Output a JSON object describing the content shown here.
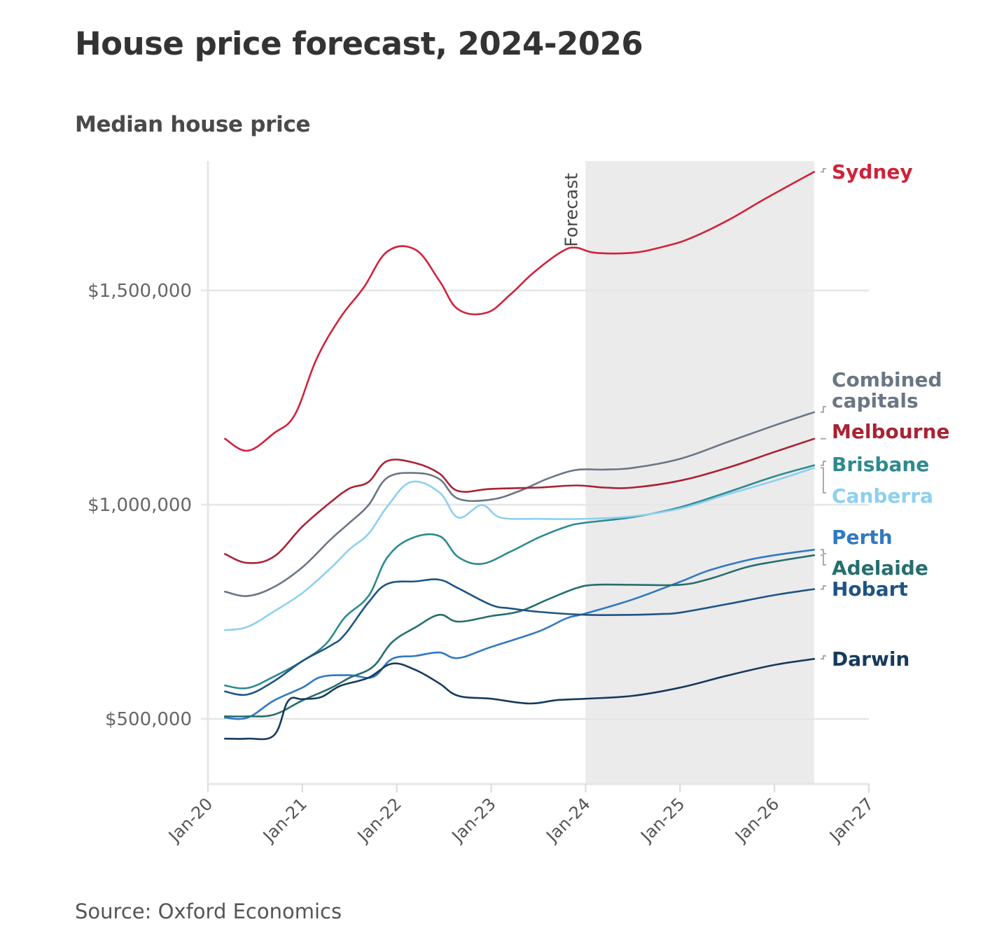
{
  "title": "House price forecast, 2024-2026",
  "subtitle": "Median house price",
  "source": "Source: Oxford Economics",
  "chart_data": {
    "type": "line",
    "title": "House price forecast, 2024-2026",
    "subtitle": "Median house price",
    "xlabel": "",
    "ylabel": "",
    "x_unit": "year (decimal)",
    "y_unit": "AUD",
    "xlim": [
      2020,
      2027
    ],
    "ylim": [
      350000,
      1800000
    ],
    "x_ticks": [
      {
        "value": 2020,
        "label": "Jan-20"
      },
      {
        "value": 2021,
        "label": "Jan-21"
      },
      {
        "value": 2022,
        "label": "Jan-22"
      },
      {
        "value": 2023,
        "label": "Jan-23"
      },
      {
        "value": 2024,
        "label": "Jan-24"
      },
      {
        "value": 2025,
        "label": "Jan-25"
      },
      {
        "value": 2026,
        "label": "Jan-26"
      },
      {
        "value": 2027,
        "label": "Jan-27"
      }
    ],
    "y_ticks": [
      {
        "value": 500000,
        "label": "$500,000"
      },
      {
        "value": 1000000,
        "label": "$1,000,000"
      },
      {
        "value": 1500000,
        "label": "$1,500,000"
      }
    ],
    "grid": "horizontal",
    "forecast_region": {
      "start": 2024.0,
      "end": 2026.42,
      "label": "Forecast",
      "color": "#ebebeb"
    },
    "legend": "direct-labels-right",
    "series": [
      {
        "name": "Sydney",
        "label": [
          "Sydney"
        ],
        "color": "#d0223a",
        "points": [
          [
            2020.18,
            1154000
          ],
          [
            2020.42,
            1126000
          ],
          [
            2020.7,
            1167000
          ],
          [
            2020.92,
            1210000
          ],
          [
            2021.15,
            1340000
          ],
          [
            2021.4,
            1436000
          ],
          [
            2021.65,
            1507000
          ],
          [
            2021.9,
            1591000
          ],
          [
            2022.2,
            1595000
          ],
          [
            2022.45,
            1523000
          ],
          [
            2022.65,
            1456000
          ],
          [
            2022.95,
            1448000
          ],
          [
            2023.2,
            1490000
          ],
          [
            2023.45,
            1542000
          ],
          [
            2023.75,
            1591000
          ],
          [
            2023.9,
            1600000
          ],
          [
            2024.1,
            1588000
          ],
          [
            2024.5,
            1588000
          ],
          [
            2024.8,
            1601000
          ],
          [
            2025.1,
            1621000
          ],
          [
            2025.5,
            1663000
          ],
          [
            2025.9,
            1714000
          ],
          [
            2026.42,
            1777000
          ]
        ]
      },
      {
        "name": "Combined capitals",
        "label": [
          "Combined",
          "capitals"
        ],
        "color": "#6b7685",
        "points": [
          [
            2020.18,
            797000
          ],
          [
            2020.42,
            787000
          ],
          [
            2020.7,
            808000
          ],
          [
            2021.0,
            854000
          ],
          [
            2021.3,
            919000
          ],
          [
            2021.5,
            958000
          ],
          [
            2021.7,
            999000
          ],
          [
            2021.9,
            1063000
          ],
          [
            2022.2,
            1074000
          ],
          [
            2022.45,
            1060000
          ],
          [
            2022.65,
            1014000
          ],
          [
            2023.0,
            1012000
          ],
          [
            2023.3,
            1032000
          ],
          [
            2023.6,
            1061000
          ],
          [
            2023.9,
            1081000
          ],
          [
            2024.2,
            1082000
          ],
          [
            2024.5,
            1086000
          ],
          [
            2025.0,
            1107000
          ],
          [
            2025.5,
            1146000
          ],
          [
            2026.0,
            1185000
          ],
          [
            2026.42,
            1216000
          ]
        ]
      },
      {
        "name": "Melbourne",
        "label": [
          "Melbourne"
        ],
        "color": "#a82334",
        "points": [
          [
            2020.18,
            885000
          ],
          [
            2020.42,
            864000
          ],
          [
            2020.7,
            879000
          ],
          [
            2021.0,
            949000
          ],
          [
            2021.3,
            1006000
          ],
          [
            2021.5,
            1038000
          ],
          [
            2021.7,
            1053000
          ],
          [
            2021.9,
            1102000
          ],
          [
            2022.2,
            1097000
          ],
          [
            2022.45,
            1073000
          ],
          [
            2022.65,
            1032000
          ],
          [
            2023.0,
            1037000
          ],
          [
            2023.5,
            1040000
          ],
          [
            2023.9,
            1045000
          ],
          [
            2024.2,
            1040000
          ],
          [
            2024.5,
            1040000
          ],
          [
            2025.0,
            1056000
          ],
          [
            2025.5,
            1086000
          ],
          [
            2026.0,
            1123000
          ],
          [
            2026.42,
            1154000
          ]
        ]
      },
      {
        "name": "Brisbane",
        "label": [
          "Brisbane"
        ],
        "color": "#2e8a8f",
        "points": [
          [
            2020.18,
            578000
          ],
          [
            2020.42,
            572000
          ],
          [
            2020.7,
            599000
          ],
          [
            2021.0,
            635000
          ],
          [
            2021.25,
            675000
          ],
          [
            2021.45,
            737000
          ],
          [
            2021.7,
            787000
          ],
          [
            2021.9,
            877000
          ],
          [
            2022.15,
            921000
          ],
          [
            2022.45,
            927000
          ],
          [
            2022.65,
            878000
          ],
          [
            2022.9,
            862000
          ],
          [
            2023.2,
            890000
          ],
          [
            2023.5,
            923000
          ],
          [
            2023.8,
            949000
          ],
          [
            2024.0,
            958000
          ],
          [
            2024.5,
            971000
          ],
          [
            2025.0,
            994000
          ],
          [
            2025.5,
            1029000
          ],
          [
            2026.0,
            1066000
          ],
          [
            2026.42,
            1092000
          ]
        ]
      },
      {
        "name": "Canberra",
        "label": [
          "Canberra"
        ],
        "color": "#8dd0ef",
        "points": [
          [
            2020.18,
            707000
          ],
          [
            2020.42,
            715000
          ],
          [
            2020.7,
            751000
          ],
          [
            2021.0,
            794000
          ],
          [
            2021.3,
            852000
          ],
          [
            2021.5,
            896000
          ],
          [
            2021.7,
            932000
          ],
          [
            2021.9,
            996000
          ],
          [
            2022.15,
            1053000
          ],
          [
            2022.45,
            1029000
          ],
          [
            2022.65,
            970000
          ],
          [
            2022.9,
            999000
          ],
          [
            2023.1,
            970000
          ],
          [
            2023.5,
            967000
          ],
          [
            2024.0,
            967000
          ],
          [
            2024.5,
            973000
          ],
          [
            2025.0,
            991000
          ],
          [
            2025.5,
            1024000
          ],
          [
            2026.0,
            1056000
          ],
          [
            2026.42,
            1086000
          ]
        ]
      },
      {
        "name": "Perth",
        "label": [
          "Perth"
        ],
        "color": "#3178c0",
        "points": [
          [
            2020.18,
            503000
          ],
          [
            2020.42,
            503000
          ],
          [
            2020.7,
            543000
          ],
          [
            2021.0,
            573000
          ],
          [
            2021.2,
            598000
          ],
          [
            2021.5,
            602000
          ],
          [
            2021.75,
            598000
          ],
          [
            2021.95,
            640000
          ],
          [
            2022.2,
            647000
          ],
          [
            2022.45,
            655000
          ],
          [
            2022.65,
            642000
          ],
          [
            2023.0,
            668000
          ],
          [
            2023.5,
            704000
          ],
          [
            2023.8,
            735000
          ],
          [
            2024.0,
            746000
          ],
          [
            2024.5,
            779000
          ],
          [
            2025.0,
            820000
          ],
          [
            2025.3,
            846000
          ],
          [
            2025.7,
            870000
          ],
          [
            2026.0,
            882000
          ],
          [
            2026.42,
            895000
          ]
        ]
      },
      {
        "name": "Adelaide",
        "label": [
          "Adelaide"
        ],
        "color": "#266e6e",
        "points": [
          [
            2020.18,
            506000
          ],
          [
            2020.42,
            506000
          ],
          [
            2020.7,
            510000
          ],
          [
            2021.0,
            543000
          ],
          [
            2021.3,
            572000
          ],
          [
            2021.5,
            596000
          ],
          [
            2021.75,
            622000
          ],
          [
            2021.95,
            679000
          ],
          [
            2022.2,
            714000
          ],
          [
            2022.45,
            743000
          ],
          [
            2022.65,
            727000
          ],
          [
            2023.0,
            740000
          ],
          [
            2023.3,
            751000
          ],
          [
            2023.6,
            779000
          ],
          [
            2023.9,
            805000
          ],
          [
            2024.1,
            813000
          ],
          [
            2024.5,
            813000
          ],
          [
            2025.0,
            813000
          ],
          [
            2025.3,
            826000
          ],
          [
            2025.7,
            854000
          ],
          [
            2026.0,
            867000
          ],
          [
            2026.42,
            882000
          ]
        ]
      },
      {
        "name": "Hobart",
        "label": [
          "Hobart"
        ],
        "color": "#1f5485",
        "points": [
          [
            2020.18,
            564000
          ],
          [
            2020.42,
            557000
          ],
          [
            2020.7,
            588000
          ],
          [
            2021.0,
            635000
          ],
          [
            2021.3,
            671000
          ],
          [
            2021.45,
            697000
          ],
          [
            2021.7,
            772000
          ],
          [
            2021.9,
            815000
          ],
          [
            2022.2,
            821000
          ],
          [
            2022.45,
            825000
          ],
          [
            2022.65,
            805000
          ],
          [
            2023.0,
            766000
          ],
          [
            2023.2,
            758000
          ],
          [
            2023.5,
            750000
          ],
          [
            2024.0,
            743000
          ],
          [
            2024.5,
            743000
          ],
          [
            2024.8,
            745000
          ],
          [
            2025.0,
            748000
          ],
          [
            2025.5,
            768000
          ],
          [
            2026.0,
            789000
          ],
          [
            2026.42,
            803000
          ]
        ]
      },
      {
        "name": "Darwin",
        "label": [
          "Darwin"
        ],
        "color": "#173a5c",
        "points": [
          [
            2020.18,
            454000
          ],
          [
            2020.42,
            454000
          ],
          [
            2020.7,
            462000
          ],
          [
            2020.85,
            542000
          ],
          [
            2021.0,
            546000
          ],
          [
            2021.2,
            551000
          ],
          [
            2021.4,
            577000
          ],
          [
            2021.7,
            596000
          ],
          [
            2021.95,
            629000
          ],
          [
            2022.2,
            614000
          ],
          [
            2022.45,
            583000
          ],
          [
            2022.65,
            554000
          ],
          [
            2023.0,
            547000
          ],
          [
            2023.4,
            536000
          ],
          [
            2023.7,
            544000
          ],
          [
            2024.0,
            547000
          ],
          [
            2024.5,
            554000
          ],
          [
            2025.0,
            573000
          ],
          [
            2025.5,
            601000
          ],
          [
            2026.0,
            626000
          ],
          [
            2026.42,
            640000
          ]
        ]
      }
    ]
  }
}
